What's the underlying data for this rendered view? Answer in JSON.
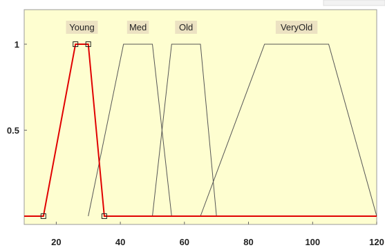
{
  "chart_data": {
    "type": "line",
    "xlim": [
      10,
      120
    ],
    "ylim": [
      0,
      1.1
    ],
    "x_ticks": [
      "20",
      "40",
      "60",
      "80",
      "100",
      "120"
    ],
    "x_tick_values": [
      20,
      40,
      60,
      80,
      100,
      120
    ],
    "y_ticks": [
      "1",
      "0.5"
    ],
    "y_tick_values": [
      1,
      0.5
    ],
    "grid": false,
    "plot_background": "#fefed0",
    "series": [
      {
        "name": "Young",
        "color": "#e00000",
        "selected": true,
        "points": [
          [
            10,
            0
          ],
          [
            16,
            0
          ],
          [
            26,
            1
          ],
          [
            30,
            1
          ],
          [
            35,
            0
          ],
          [
            120,
            0
          ]
        ]
      },
      {
        "name": "Med",
        "color": "#555555",
        "selected": false,
        "points": [
          [
            30,
            0
          ],
          [
            41,
            1
          ],
          [
            50,
            1
          ],
          [
            56,
            0
          ]
        ]
      },
      {
        "name": "Old",
        "color": "#555555",
        "selected": false,
        "points": [
          [
            50,
            0
          ],
          [
            56,
            1
          ],
          [
            65,
            1
          ],
          [
            70,
            0
          ]
        ]
      },
      {
        "name": "VeryOld",
        "color": "#555555",
        "selected": false,
        "points": [
          [
            65,
            0
          ],
          [
            85,
            1
          ],
          [
            105,
            1
          ],
          [
            120,
            0
          ]
        ]
      }
    ]
  }
}
